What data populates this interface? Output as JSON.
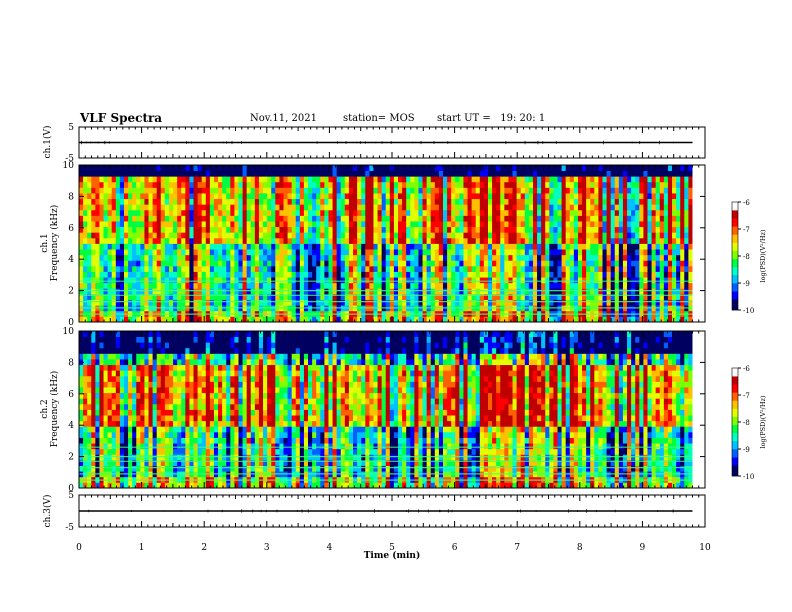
{
  "header": {
    "title": "VLF Spectra",
    "date": "Nov.11, 2021",
    "station": "station= MOS",
    "start": "start UT =   19: 20: 1"
  },
  "panels": {
    "ch1v": {
      "ylabel": "ch.1(V)",
      "yticks": [
        "5",
        "-5"
      ]
    },
    "ch1": {
      "ylabel_top": "ch.1",
      "ylabel": "Frequency (kHz)",
      "yticks": [
        "0",
        "2",
        "4",
        "6",
        "8",
        "10"
      ]
    },
    "ch2": {
      "ylabel_top": "ch.2",
      "ylabel": "Frequency (kHz)",
      "yticks": [
        "0",
        "2",
        "4",
        "6",
        "8",
        "10"
      ]
    },
    "ch3v": {
      "ylabel": "ch.3(V)",
      "yticks": [
        "5",
        "-5"
      ]
    }
  },
  "colorbar": {
    "label": "log(PSD)(V²/Hz)",
    "ticks": [
      "-6",
      "-7",
      "-8",
      "-9",
      "-10"
    ],
    "colors": [
      "#000080",
      "#0000ff",
      "#00bfff",
      "#00ff80",
      "#80ff00",
      "#ffff00",
      "#ff8000",
      "#ff0000",
      "#ffffff"
    ]
  },
  "chart_data": [
    {
      "type": "line",
      "title": "",
      "ylabel": "ch.1(V)",
      "xlabel": "",
      "ylim": [
        -5,
        5
      ],
      "xlim": [
        0,
        10
      ],
      "series": [
        {
          "x": [
            0,
            9.8
          ],
          "values": [
            0,
            0
          ]
        }
      ],
      "grid": false
    },
    {
      "type": "heatmap",
      "ylabel": "ch.1 Frequency (kHz)",
      "ylim": [
        0,
        10
      ],
      "xlim": [
        0,
        10
      ],
      "data_extent_x": [
        0,
        9.8
      ],
      "color_range": [
        -10,
        -6
      ],
      "color_label": "log(PSD)(V²/Hz)"
    },
    {
      "type": "heatmap",
      "ylabel": "ch.2 Frequency (kHz)",
      "ylim": [
        0,
        10
      ],
      "xlim": [
        0,
        10
      ],
      "data_extent_x": [
        0,
        9.8
      ],
      "color_range": [
        -10,
        -6
      ],
      "color_label": "log(PSD)(V²/Hz)"
    },
    {
      "type": "line",
      "ylabel": "ch.3(V)",
      "xlabel": "Time (min)",
      "ylim": [
        -5,
        5
      ],
      "xlim": [
        0,
        10
      ],
      "xticks": [
        "0",
        "1",
        "2",
        "3",
        "4",
        "5",
        "6",
        "7",
        "8",
        "9",
        "10"
      ],
      "series": [
        {
          "x": [
            0,
            9.8
          ],
          "values": [
            0,
            0
          ]
        }
      ],
      "grid": false
    }
  ]
}
